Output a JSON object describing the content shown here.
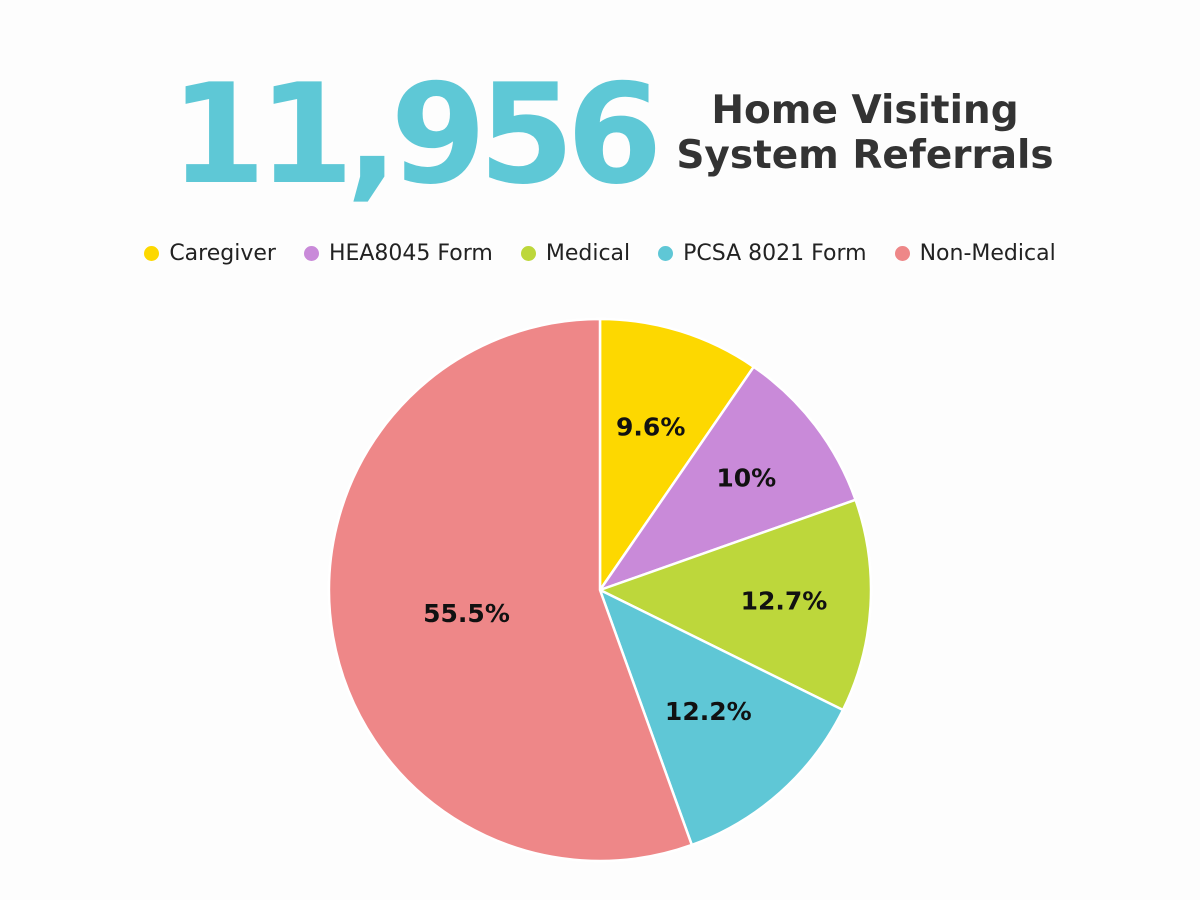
{
  "header": {
    "big_number": "11,956",
    "title_line1": "Home Visiting",
    "title_line2": "System Referrals",
    "big_number_color": "#5ec8d6",
    "title_color": "#333333"
  },
  "chart_data": {
    "type": "pie",
    "legend_placement": "top",
    "categories": [
      "Caregiver",
      "HEA8045 Form",
      "Medical",
      "PCSA 8021 Form",
      "Non-Medical"
    ],
    "values": [
      9.6,
      10,
      12.7,
      12.2,
      55.5
    ],
    "labels": [
      "9.6%",
      "10%",
      "12.7%",
      "12.2%",
      "55.5%"
    ],
    "colors": [
      "#fdd800",
      "#c98ad9",
      "#bdd73b",
      "#5fc7d6",
      "#ee8788"
    ],
    "start": "12 o'clock",
    "direction": "clockwise"
  }
}
